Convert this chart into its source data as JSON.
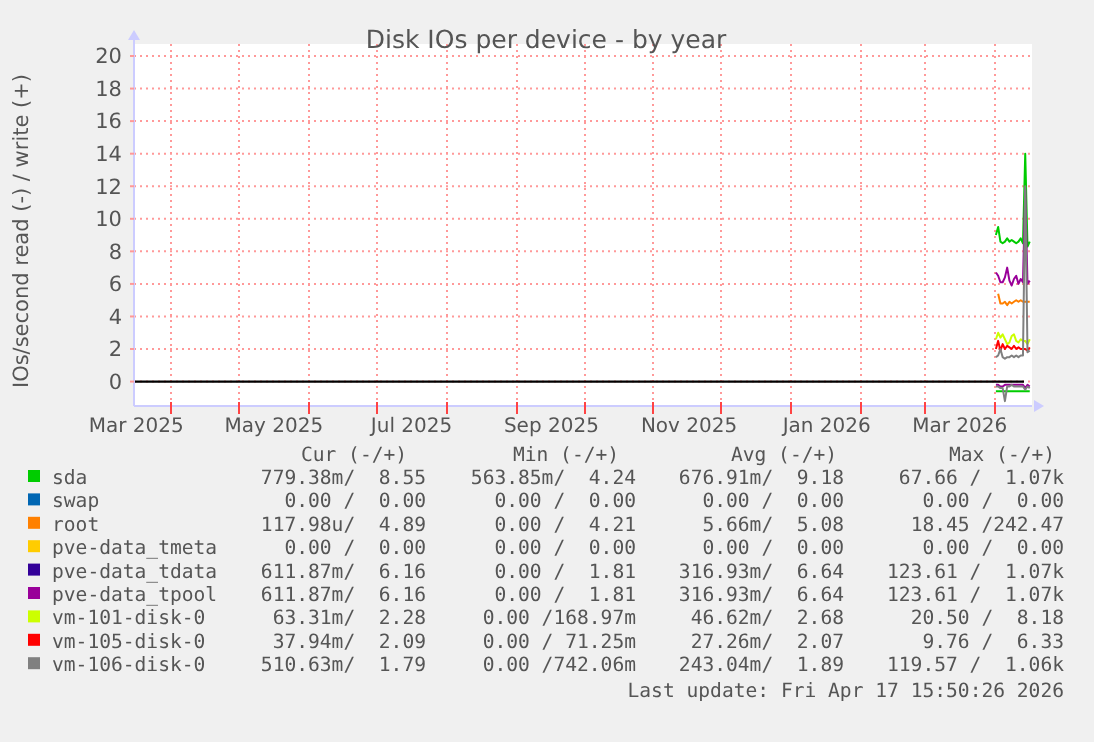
{
  "chart_data": {
    "type": "line",
    "title": "Disk IOs per device - by year",
    "ylabel": "IOs/second read (-) / write (+)",
    "x": [
      "2026-04-02",
      "2026-04-03",
      "2026-04-04",
      "2026-04-05",
      "2026-04-06",
      "2026-04-07",
      "2026-04-08",
      "2026-04-09",
      "2026-04-10",
      "2026-04-11",
      "2026-04-12",
      "2026-04-13",
      "2026-04-14",
      "2026-04-15",
      "2026-04-16",
      "2026-04-17"
    ],
    "xlim": [
      "2025-03-16",
      "2026-04-18"
    ],
    "xticks": [
      {
        "value": "2025-03-17",
        "label": "Mar 2025"
      },
      {
        "value": "2025-04-01",
        "label": null
      },
      {
        "value": "2025-05-01",
        "label": null
      },
      {
        "value": "2025-05-17",
        "label": "May 2025"
      },
      {
        "value": "2025-06-01",
        "label": null
      },
      {
        "value": "2025-07-01",
        "label": null
      },
      {
        "value": "2025-07-17",
        "label": "Jul 2025"
      },
      {
        "value": "2025-08-01",
        "label": null
      },
      {
        "value": "2025-09-01",
        "label": null
      },
      {
        "value": "2025-09-17",
        "label": "Sep 2025"
      },
      {
        "value": "2025-10-01",
        "label": null
      },
      {
        "value": "2025-11-01",
        "label": null
      },
      {
        "value": "2025-11-17",
        "label": "Nov 2025"
      },
      {
        "value": "2025-12-01",
        "label": null
      },
      {
        "value": "2026-01-01",
        "label": null
      },
      {
        "value": "2026-01-17",
        "label": "Jan 2026"
      },
      {
        "value": "2026-02-01",
        "label": null
      },
      {
        "value": "2026-03-01",
        "label": null
      },
      {
        "value": "2026-03-17",
        "label": "Mar 2026"
      },
      {
        "value": "2026-04-01",
        "label": null
      }
    ],
    "ylim": [
      -1.5,
      20
    ],
    "yticks": [
      0,
      2,
      4,
      6,
      8,
      10,
      12,
      14,
      16,
      18,
      20
    ],
    "grid": true,
    "legend": "bottom",
    "ref_lines": [
      {
        "axis": "y",
        "value": 0,
        "color": "#000000"
      }
    ],
    "series": [
      {
        "name": "sda",
        "color": "#00cc00",
        "values": [
          9.0,
          9.5,
          8.6,
          8.5,
          8.6,
          8.8,
          8.6,
          8.7,
          8.6,
          8.5,
          8.6,
          8.8,
          8.5,
          14.0,
          8.3,
          8.6
        ]
      },
      {
        "name": "swap",
        "color": "#0066b3",
        "values": [
          null,
          null,
          null,
          null,
          null,
          null,
          null,
          null,
          null,
          null,
          null,
          null,
          null,
          null,
          null,
          null
        ]
      },
      {
        "name": "root",
        "color": "#ff8000",
        "values": [
          null,
          5.4,
          4.8,
          4.8,
          4.9,
          4.7,
          4.9,
          4.8,
          4.9,
          5.0,
          4.9,
          5.0,
          4.9,
          4.9,
          4.9,
          4.9
        ]
      },
      {
        "name": "pve-data_tmeta",
        "color": "#ffcc00",
        "values": [
          null,
          null,
          null,
          null,
          null,
          null,
          null,
          null,
          null,
          null,
          null,
          null,
          null,
          null,
          null,
          null
        ]
      },
      {
        "name": "pve-data_tdata",
        "color": "#330099",
        "values": [
          null,
          null,
          null,
          null,
          null,
          null,
          null,
          null,
          null,
          null,
          null,
          null,
          null,
          null,
          null,
          null
        ]
      },
      {
        "name": "pve-data_tpool",
        "color": "#990099",
        "values": [
          6.7,
          6.5,
          6.1,
          6.1,
          6.4,
          7.0,
          6.2,
          5.9,
          6.3,
          6.5,
          6.0,
          6.3,
          6.1,
          11.8,
          6.0,
          6.2
        ]
      },
      {
        "name": "vm-101-disk-0",
        "color": "#ccff00",
        "values": [
          2.6,
          3.0,
          2.7,
          2.9,
          2.6,
          2.3,
          2.4,
          2.8,
          2.9,
          2.5,
          2.4,
          2.6,
          2.5,
          2.5,
          2.3,
          2.6
        ]
      },
      {
        "name": "vm-105-disk-0",
        "color": "#ff0000",
        "values": [
          2.0,
          2.5,
          1.9,
          2.3,
          2.0,
          2.2,
          2.1,
          2.0,
          2.2,
          2.0,
          2.1,
          2.0,
          2.0,
          2.0,
          1.9,
          2.1
        ]
      },
      {
        "name": "vm-106-disk-0",
        "color": "#808080",
        "values": [
          1.5,
          1.6,
          2.0,
          1.5,
          1.4,
          1.5,
          1.5,
          1.6,
          1.5,
          1.6,
          1.5,
          1.6,
          1.6,
          12.0,
          1.8,
          1.9
        ]
      },
      {
        "color": "#00cc00",
        "values": [
          -0.6,
          -0.6,
          -0.6,
          -0.6,
          -0.6,
          -0.6,
          -0.6,
          -0.6,
          -0.6,
          -0.6,
          -0.6,
          -0.6,
          -0.6,
          -0.6,
          -0.6,
          -0.6
        ]
      },
      {
        "color": "#990099",
        "values": [
          -0.2,
          -0.2,
          -0.3,
          -0.3,
          -0.2,
          -0.2,
          -0.2,
          -0.2,
          -0.2,
          -0.2,
          -0.2,
          -0.2,
          -0.2,
          -0.4,
          -0.2,
          -0.3
        ]
      },
      {
        "color": "#808080",
        "values": [
          -0.3,
          -0.3,
          -0.4,
          -0.4,
          -1.2,
          -0.3,
          -0.3,
          -0.2,
          -0.3,
          -0.3,
          -0.3,
          -0.3,
          -0.3,
          -0.5,
          -0.3,
          -0.4
        ]
      }
    ],
    "annotations": [
      "Cur (-/+)",
      "Min (-/+)",
      "Avg (-/+)",
      "Max (-/+)",
      "779.38m/  8.55",
      "563.85m/  4.24",
      "676.91m/  9.18",
      "67.66 /  1.07k",
      "0.00 /  0.00",
      "0.00 /  0.00",
      "0.00 /  0.00",
      "0.00 /  0.00",
      "117.98u/  4.89",
      "0.00 /  4.21",
      "5.66m/  5.08",
      "18.45 /242.47",
      "0.00 /  0.00",
      "0.00 /  0.00",
      "0.00 /  0.00",
      "0.00 /  0.00",
      "611.87m/  6.16",
      "0.00 /  1.81",
      "316.93m/  6.64",
      "123.61 /  1.07k",
      "611.87m/  6.16",
      "0.00 /  1.81",
      "316.93m/  6.64",
      "123.61 /  1.07k",
      "63.31m/  2.28",
      "0.00 /168.97m",
      "46.62m/  2.68",
      "20.50 /  8.18",
      "37.94m/  2.09",
      "0.00 / 71.25m",
      "27.26m/  2.07",
      "9.76 /  6.33",
      "510.63m/  1.79",
      "0.00 /742.06m",
      "243.04m/  1.89",
      "119.57 /  1.06k",
      "Last update: Fri Apr 17 15:50:26 2026"
    ]
  }
}
